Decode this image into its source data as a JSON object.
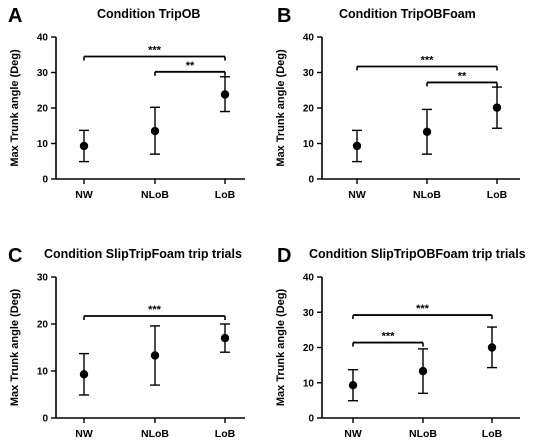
{
  "chart_data": [
    {
      "type": "scatter",
      "panel": "A",
      "title": "Condition TripOB",
      "ylabel": "Max Trunk angle (Deg)",
      "xlabel": "",
      "categories": [
        "NW",
        "NLoB",
        "LoB"
      ],
      "values": [
        9.3,
        13.5,
        23.8
      ],
      "error_low": [
        4.9,
        7.0,
        19.0
      ],
      "error_high": [
        13.7,
        20.2,
        28.8
      ],
      "ylim": [
        0,
        40
      ],
      "yticks": [
        "0",
        "10",
        "20",
        "30",
        "40"
      ],
      "grid": false,
      "significance": [
        {
          "from": "NW",
          "to": "LoB",
          "label": "***",
          "level": 34.5
        },
        {
          "from": "NLoB",
          "to": "LoB",
          "label": "**",
          "level": 30.2
        }
      ]
    },
    {
      "type": "scatter",
      "panel": "B",
      "title": "Condition TripOBFoam",
      "ylabel": "Max Trunk angle (Deg)",
      "xlabel": "",
      "categories": [
        "NW",
        "NLoB",
        "LoB"
      ],
      "values": [
        9.3,
        13.3,
        20.1
      ],
      "error_low": [
        4.9,
        7.0,
        14.3
      ],
      "error_high": [
        13.7,
        19.6,
        25.9
      ],
      "ylim": [
        0,
        40
      ],
      "yticks": [
        "0",
        "10",
        "20",
        "30",
        "40"
      ],
      "grid": false,
      "significance": [
        {
          "from": "NW",
          "to": "LoB",
          "label": "***",
          "level": 31.7
        },
        {
          "from": "NLoB",
          "to": "LoB",
          "label": "**",
          "level": 27.2
        }
      ]
    },
    {
      "type": "scatter",
      "panel": "C",
      "title": "Condition  SlipTripFoam trip trials",
      "ylabel": "Max Trunk angle (Deg)",
      "xlabel": "",
      "categories": [
        "NW",
        "NLoB",
        "LoB"
      ],
      "values": [
        9.3,
        13.3,
        17.0
      ],
      "error_low": [
        4.9,
        7.0,
        14.0
      ],
      "error_high": [
        13.7,
        19.6,
        20.0
      ],
      "ylim": [
        0,
        30
      ],
      "yticks": [
        "0",
        "10",
        "20",
        "30"
      ],
      "grid": false,
      "significance": [
        {
          "from": "NW",
          "to": "LoB",
          "label": "***",
          "level": 21.7
        }
      ]
    },
    {
      "type": "scatter",
      "panel": "D",
      "title": "Condition SlipTripOBFoam trip  trials",
      "ylabel": "Max Trunk angle (Deg)",
      "xlabel": "",
      "categories": [
        "NW",
        "NLoB",
        "LoB"
      ],
      "values": [
        9.3,
        13.3,
        20.0
      ],
      "error_low": [
        4.9,
        7.0,
        14.3
      ],
      "error_high": [
        13.7,
        19.6,
        25.8
      ],
      "ylim": [
        0,
        40
      ],
      "yticks": [
        "0",
        "10",
        "20",
        "30",
        "40"
      ],
      "grid": false,
      "significance": [
        {
          "from": "NW",
          "to": "LoB",
          "label": "***",
          "level": 29.2
        },
        {
          "from": "NW",
          "to": "NLoB",
          "label": "***",
          "level": 21.4
        }
      ]
    }
  ]
}
